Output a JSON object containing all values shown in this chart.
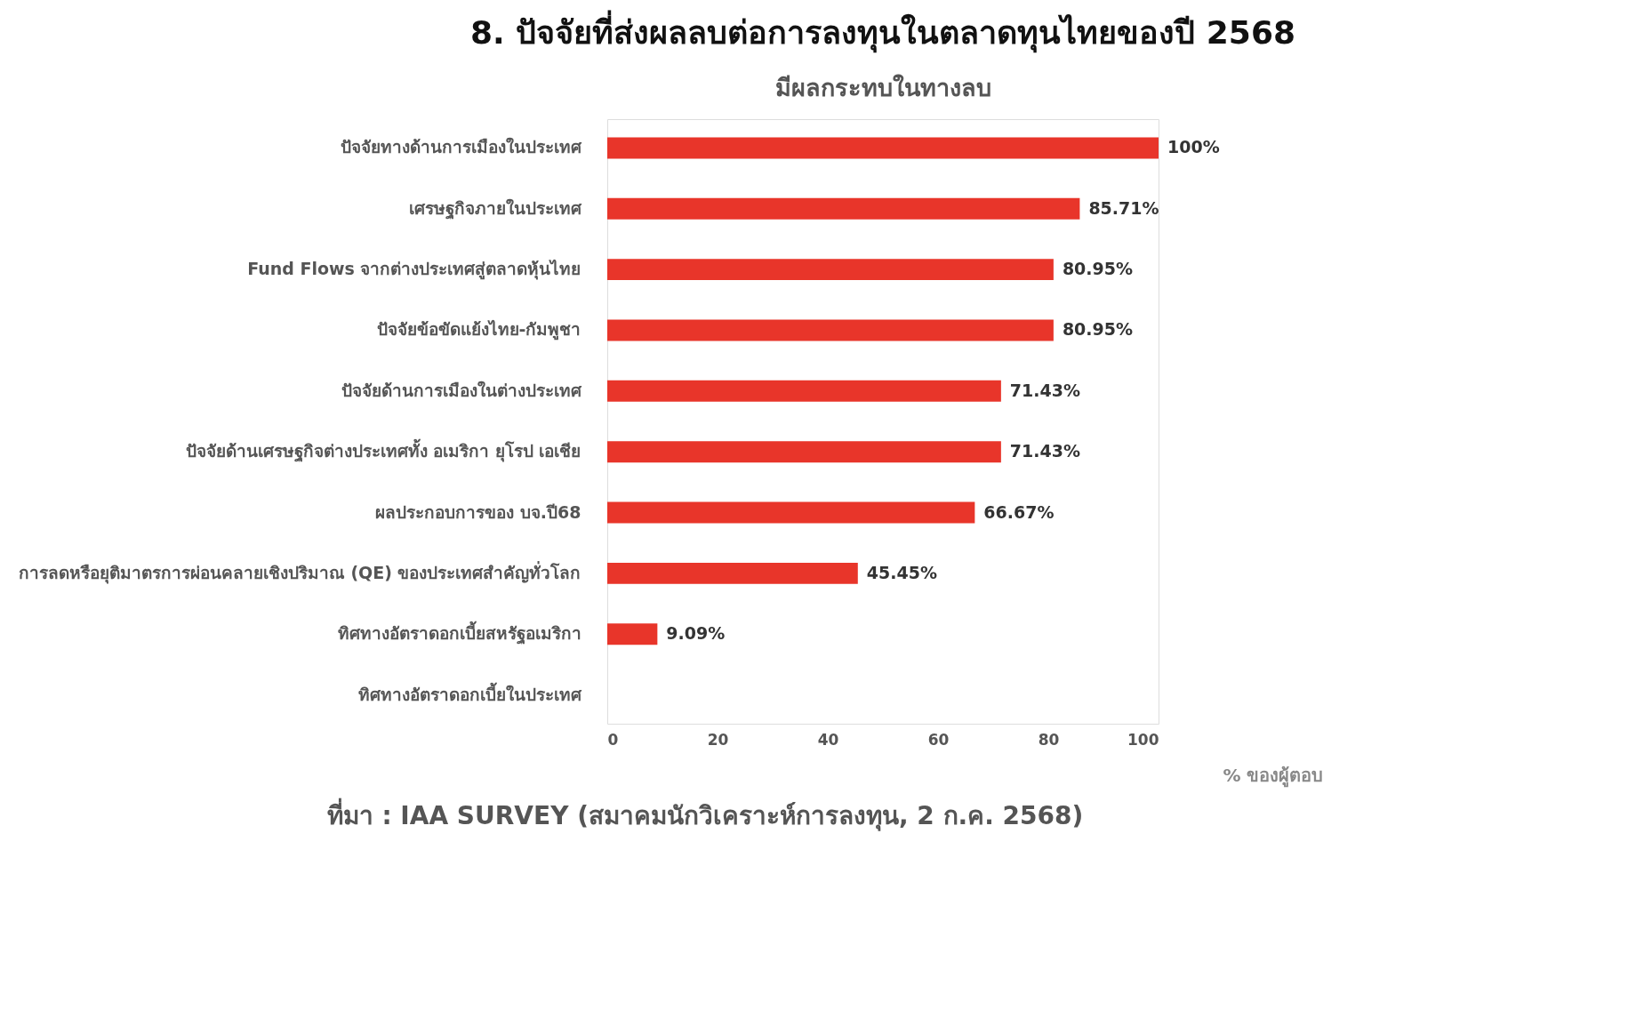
{
  "chart_data": {
    "type": "bar",
    "orientation": "horizontal",
    "title": "8. ปัจจัยที่ส่งผลลบต่อการลงทุนในตลาดทุนไทยของปี 2568",
    "subtitle": "มีผลกระทบในทางลบ",
    "xlabel": "% ของผู้ตอบ",
    "categories": [
      "ปัจจัยทางด้านการเมืองในประเทศ",
      "เศรษฐกิจภายในประเทศ",
      "Fund Flows จากต่างประเทศสู่ตลาดหุ้นไทย",
      "ปัจจัยข้อขัดแย้งไทย-กัมพูชา",
      "ปัจจัยด้านการเมืองในต่างประเทศ",
      "ปัจจัยด้านเศรษฐกิจต่างประเทศทั้ง อเมริกา ยุโรป เอเชีย",
      "ผลประกอบการของ บจ.ปี68",
      "การลดหรือยุติมาตรการผ่อนคลายเชิงปริมาณ (QE) ของประเทศสำคัญทั่วโลก",
      "ทิศทางอัตราดอกเบี้ยสหรัฐอเมริกา",
      "ทิศทางอัตราดอกเบี้ยในประเทศ"
    ],
    "values": [
      100,
      85.71,
      80.95,
      80.95,
      71.43,
      71.43,
      66.67,
      45.45,
      9.09,
      null
    ],
    "value_labels": [
      "100%",
      "85.71%",
      "80.95%",
      "80.95%",
      "71.43%",
      "71.43%",
      "66.67%",
      "45.45%",
      "9.09%",
      null
    ],
    "color": "#e8352a",
    "xlim": [
      0,
      100
    ],
    "xticks": [
      0,
      20,
      40,
      60,
      80,
      100
    ],
    "grid": false,
    "annotations": [
      "ที่มา : IAA SURVEY (สมาคมนักวิเคราะห์การลงทุน, 2 ก.ค. 2568)"
    ]
  }
}
